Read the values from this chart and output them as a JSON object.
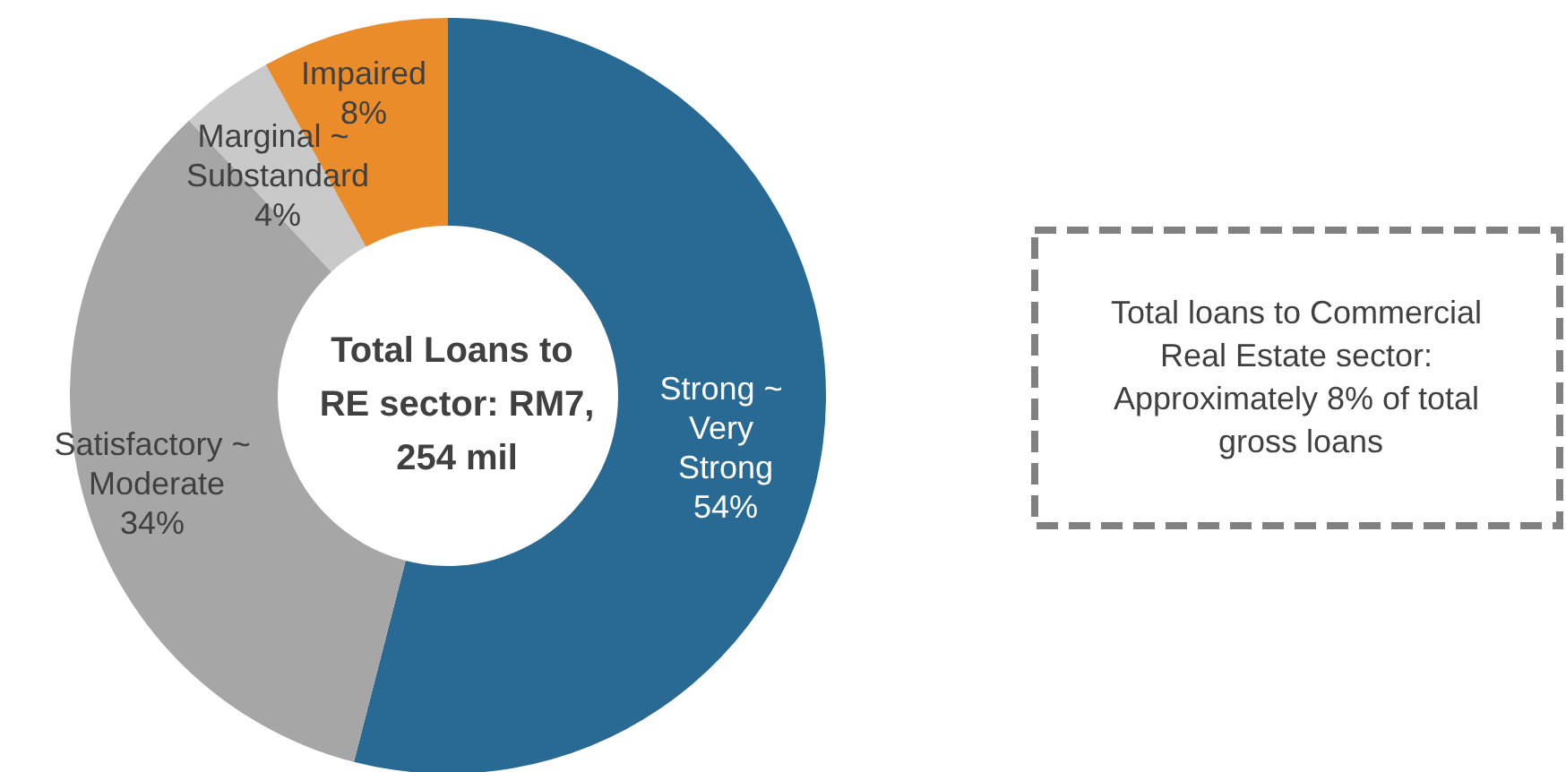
{
  "chart_data": {
    "type": "donut",
    "title": "Total Loans to RE sector: RM7,254 mil",
    "categories": [
      "Strong ~ Very Strong",
      "Satisfactory ~ Moderate",
      "Marginal ~ Substandard",
      "Impaired"
    ],
    "values": [
      54,
      34,
      4,
      8
    ],
    "colors": [
      "#286a93",
      "#a6a6a6",
      "#c9c9c9",
      "#eb8c2b"
    ],
    "value_labels": [
      "54%",
      "34%",
      "4%",
      "8%"
    ],
    "legend": false,
    "annotations": [
      "Total loans to Commercial Real Estate sector: Approximately 8% of total gross loans"
    ]
  }
}
